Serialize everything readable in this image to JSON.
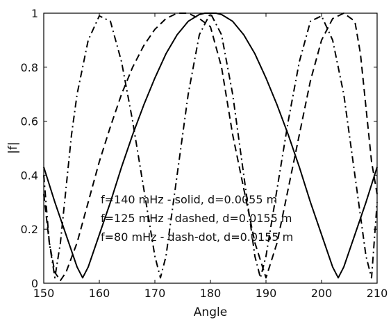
{
  "chart_data": {
    "type": "line",
    "title": "",
    "xlabel": "Angle",
    "ylabel": "|f|",
    "xlim": [
      150,
      210
    ],
    "ylim": [
      0,
      1
    ],
    "xticks": [
      "150",
      "160",
      "170",
      "180",
      "190",
      "200",
      "210"
    ],
    "yticks": [
      "0",
      "0.2",
      "0.4",
      "0.6",
      "0.8",
      "1"
    ],
    "grid": false,
    "series": [
      {
        "style": "solid",
        "color": "#000000",
        "x": [
          150,
          152,
          154,
          156,
          157,
          158,
          160,
          162,
          164,
          166,
          168,
          170,
          172,
          174,
          176,
          178,
          179,
          180,
          181,
          182,
          184,
          186,
          188,
          190,
          192,
          194,
          196,
          198,
          200,
          202,
          203,
          204,
          206,
          208,
          210
        ],
        "y": [
          0.43,
          0.3,
          0.18,
          0.06,
          0.02,
          0.06,
          0.18,
          0.3,
          0.43,
          0.55,
          0.66,
          0.76,
          0.85,
          0.92,
          0.97,
          0.995,
          1.0,
          1.0,
          1.0,
          0.995,
          0.97,
          0.92,
          0.85,
          0.76,
          0.66,
          0.55,
          0.43,
          0.3,
          0.18,
          0.06,
          0.02,
          0.06,
          0.18,
          0.3,
          0.43
        ]
      },
      {
        "style": "dashed",
        "color": "#000000",
        "x": [
          150,
          151,
          152,
          153,
          154,
          156,
          158,
          160,
          162,
          164,
          166,
          168,
          170,
          172,
          174,
          176,
          178,
          180,
          182,
          184,
          186,
          188,
          190,
          192,
          194,
          196,
          198,
          200,
          202,
          204,
          206,
          207,
          208,
          209,
          210
        ],
        "y": [
          0.33,
          0.15,
          0.04,
          0.01,
          0.04,
          0.15,
          0.3,
          0.45,
          0.58,
          0.7,
          0.8,
          0.88,
          0.94,
          0.98,
          1.0,
          1.0,
          0.98,
          0.95,
          0.8,
          0.55,
          0.35,
          0.15,
          0.02,
          0.15,
          0.35,
          0.55,
          0.75,
          0.9,
          0.98,
          1.0,
          0.97,
          0.85,
          0.65,
          0.45,
          0.33
        ]
      },
      {
        "style": "dash-dot",
        "color": "#000000",
        "x": [
          150,
          151,
          152,
          153,
          154,
          155,
          156,
          158,
          160,
          162,
          164,
          166,
          168,
          170,
          171,
          172,
          174,
          176,
          178,
          180,
          182,
          184,
          186,
          188,
          189,
          190,
          192,
          194,
          196,
          198,
          200,
          202,
          204,
          206,
          208,
          209,
          210
        ],
        "y": [
          0.4,
          0.15,
          0.02,
          0.15,
          0.35,
          0.55,
          0.7,
          0.9,
          0.99,
          0.97,
          0.82,
          0.6,
          0.35,
          0.1,
          0.02,
          0.1,
          0.4,
          0.7,
          0.92,
          1.0,
          0.92,
          0.7,
          0.4,
          0.1,
          0.02,
          0.1,
          0.35,
          0.6,
          0.82,
          0.97,
          0.99,
          0.9,
          0.7,
          0.4,
          0.1,
          0.02,
          0.3
        ]
      }
    ],
    "annotations": [
      "f=140 mHz - solid, d=0.0055 m",
      "f=125 mHz - dashed, d=0.0155 m",
      "f=80 mHz - dash-dot, d=0.0155 m"
    ]
  }
}
